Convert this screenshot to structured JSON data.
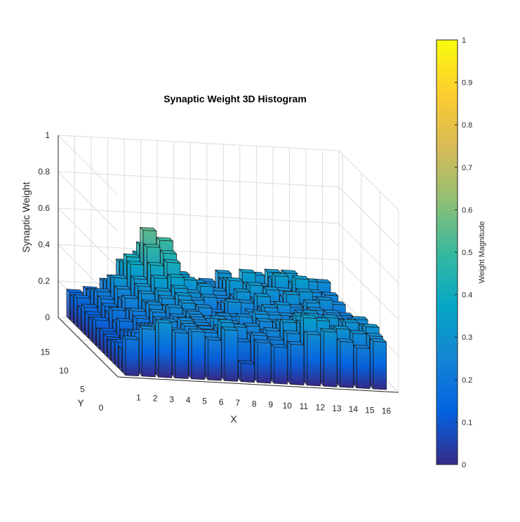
{
  "chart_data": {
    "type": "bar3",
    "title": "Synaptic Weight 3D Histogram",
    "xlabel": "X",
    "ylabel": "Y",
    "zlabel": "Synaptic Weight",
    "colorbar_label": "Weight Magnitude",
    "colormap": "parula",
    "colormap_stops": [
      "#352a87",
      "#0363e1",
      "#1485d4",
      "#06a7c6",
      "#38b99e",
      "#92bf73",
      "#d9ba56",
      "#fcce2e",
      "#f9fb0e"
    ],
    "x_ticks": [
      "1",
      "2",
      "3",
      "4",
      "5",
      "6",
      "7",
      "8",
      "9",
      "10",
      "11",
      "12",
      "13",
      "14",
      "15",
      "16"
    ],
    "y_ticks": [
      "0",
      "5",
      "10",
      "15"
    ],
    "z_ticks": [
      "0",
      "0.2",
      "0.4",
      "0.6",
      "0.8",
      "1"
    ],
    "colorbar_ticks": [
      "0",
      "0.1",
      "0.2",
      "0.3",
      "0.4",
      "0.5",
      "0.6",
      "0.7",
      "0.8",
      "0.9",
      "1"
    ],
    "xlim": [
      0,
      17
    ],
    "ylim": [
      0,
      16
    ],
    "zlim": [
      0,
      1
    ],
    "clim": [
      0,
      1
    ],
    "grid": true,
    "rows_y": [
      16,
      15,
      14,
      13,
      12,
      11,
      10,
      9,
      8,
      7,
      6,
      5,
      4,
      3,
      2,
      1
    ],
    "weights": [
      [
        0.15,
        0.17,
        0.22,
        0.33,
        0.38,
        0.35,
        0.25,
        0.22,
        0.25,
        0.3,
        0.2,
        0.3,
        0.32,
        0.32,
        0.25,
        0.28
      ],
      [
        0.14,
        0.18,
        0.24,
        0.35,
        0.45,
        0.42,
        0.3,
        0.25,
        0.2,
        0.28,
        0.28,
        0.26,
        0.3,
        0.28,
        0.3,
        0.22
      ],
      [
        0.16,
        0.2,
        0.28,
        0.4,
        0.55,
        0.5,
        0.32,
        0.28,
        0.22,
        0.3,
        0.35,
        0.24,
        0.34,
        0.3,
        0.26,
        0.25
      ],
      [
        0.12,
        0.22,
        0.3,
        0.38,
        0.48,
        0.45,
        0.3,
        0.22,
        0.26,
        0.32,
        0.3,
        0.28,
        0.28,
        0.35,
        0.24,
        0.2
      ],
      [
        0.15,
        0.2,
        0.26,
        0.32,
        0.4,
        0.42,
        0.33,
        0.3,
        0.24,
        0.25,
        0.32,
        0.3,
        0.26,
        0.3,
        0.22,
        0.24
      ],
      [
        0.13,
        0.18,
        0.22,
        0.3,
        0.35,
        0.36,
        0.28,
        0.26,
        0.22,
        0.3,
        0.26,
        0.24,
        0.3,
        0.24,
        0.28,
        0.2
      ],
      [
        0.12,
        0.16,
        0.25,
        0.28,
        0.3,
        0.32,
        0.26,
        0.2,
        0.25,
        0.26,
        0.3,
        0.22,
        0.25,
        0.28,
        0.2,
        0.22
      ],
      [
        0.14,
        0.2,
        0.2,
        0.25,
        0.28,
        0.3,
        0.24,
        0.22,
        0.28,
        0.2,
        0.25,
        0.28,
        0.22,
        0.26,
        0.25,
        0.18
      ],
      [
        0.1,
        0.15,
        0.22,
        0.26,
        0.25,
        0.28,
        0.26,
        0.18,
        0.22,
        0.25,
        0.28,
        0.24,
        0.26,
        0.22,
        0.24,
        0.2
      ],
      [
        0.12,
        0.18,
        0.2,
        0.24,
        0.27,
        0.25,
        0.22,
        0.24,
        0.2,
        0.22,
        0.26,
        0.2,
        0.24,
        0.26,
        0.22,
        0.25
      ],
      [
        0.11,
        0.14,
        0.18,
        0.22,
        0.24,
        0.26,
        0.24,
        0.2,
        0.26,
        0.28,
        0.24,
        0.22,
        0.3,
        0.24,
        0.26,
        0.28
      ],
      [
        0.1,
        0.16,
        0.2,
        0.2,
        0.22,
        0.25,
        0.22,
        0.24,
        0.22,
        0.26,
        0.25,
        0.28,
        0.26,
        0.3,
        0.28,
        0.25
      ],
      [
        0.12,
        0.18,
        0.22,
        0.25,
        0.26,
        0.24,
        0.28,
        0.2,
        0.25,
        0.22,
        0.28,
        0.32,
        0.28,
        0.26,
        0.3,
        0.28
      ],
      [
        0.14,
        0.2,
        0.24,
        0.22,
        0.25,
        0.24,
        0.25,
        0.26,
        0.22,
        0.25,
        0.3,
        0.3,
        0.32,
        0.28,
        0.25,
        0.3
      ],
      [
        0.12,
        0.16,
        0.26,
        0.24,
        0.22,
        0.24,
        0.3,
        0.2,
        0.24,
        0.22,
        0.26,
        0.35,
        0.24,
        0.3,
        0.28,
        0.27
      ],
      [
        0.2,
        0.26,
        0.3,
        0.25,
        0.26,
        0.22,
        0.28,
        0.1,
        0.22,
        0.2,
        0.22,
        0.28,
        0.3,
        0.25,
        0.22,
        0.26
      ]
    ]
  }
}
